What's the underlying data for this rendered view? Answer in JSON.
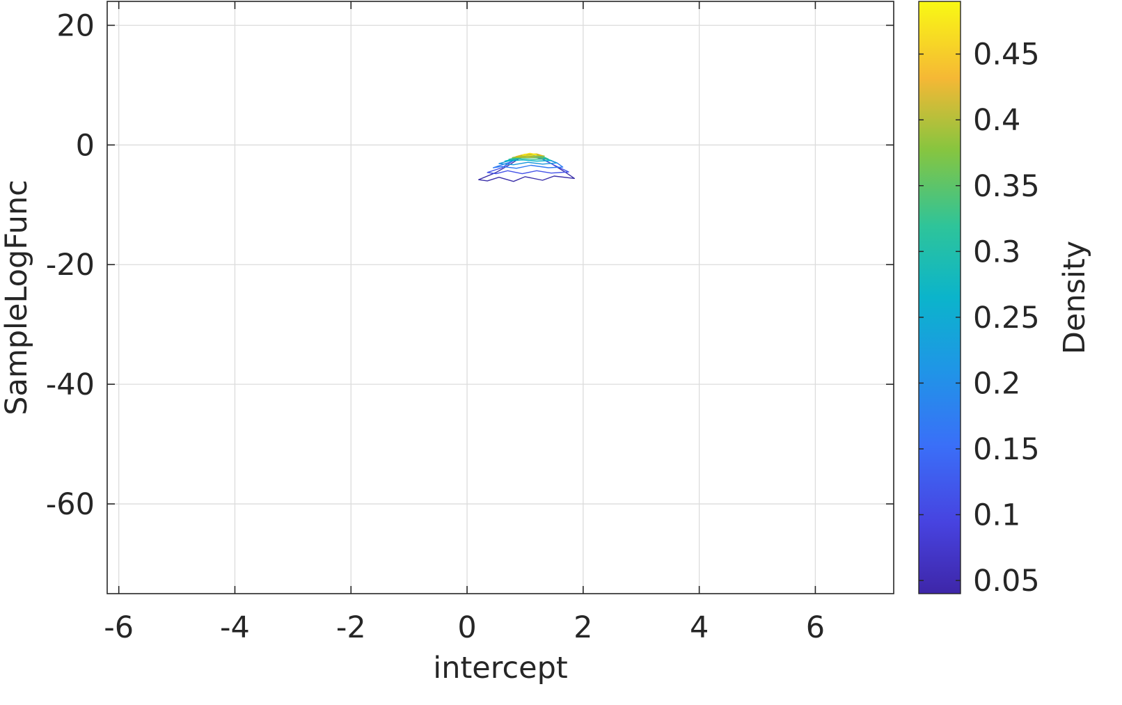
{
  "chart_data": {
    "type": "contour",
    "xlabel": "intercept",
    "ylabel": "SampleLogFunc",
    "xlim": [
      -6.2,
      7.35
    ],
    "ylim": [
      -75,
      24
    ],
    "xticks": [
      -6,
      -4,
      -2,
      0,
      2,
      4,
      6
    ],
    "yticks": [
      20,
      0,
      -20,
      -40,
      -60
    ],
    "grid": true,
    "colorbar": {
      "label": "Density",
      "range": [
        0.04,
        0.49
      ],
      "ticks": [
        0.05,
        0.1,
        0.15,
        0.2,
        0.25,
        0.3,
        0.35,
        0.4,
        0.45
      ],
      "colormap": "parula"
    },
    "density_peak": {
      "x": 1.05,
      "y": -1.8
    },
    "contours": [
      {
        "level": 0.05,
        "color": "#3a2ea8",
        "points": [
          [
            0.2,
            -5.8
          ],
          [
            0.5,
            -4.6
          ],
          [
            0.75,
            -3.2
          ],
          [
            1.0,
            -1.6
          ],
          [
            1.2,
            -1.9
          ],
          [
            1.45,
            -3.1
          ],
          [
            1.7,
            -4.6
          ],
          [
            1.85,
            -5.6
          ],
          [
            1.5,
            -5.2
          ],
          [
            1.3,
            -5.9
          ],
          [
            1.0,
            -5.3
          ],
          [
            0.8,
            -6.1
          ],
          [
            0.55,
            -5.4
          ],
          [
            0.35,
            -6.0
          ]
        ]
      },
      {
        "level": 0.1,
        "color": "#4453e8",
        "points": [
          [
            0.35,
            -4.6
          ],
          [
            0.6,
            -3.8
          ],
          [
            0.85,
            -2.3
          ],
          [
            1.05,
            -1.7
          ],
          [
            1.3,
            -2.4
          ],
          [
            1.55,
            -3.6
          ],
          [
            1.75,
            -4.5
          ],
          [
            1.45,
            -4.7
          ],
          [
            1.2,
            -4.3
          ],
          [
            0.95,
            -4.8
          ],
          [
            0.7,
            -4.3
          ],
          [
            0.5,
            -4.8
          ]
        ]
      },
      {
        "level": 0.15,
        "color": "#2e79f2",
        "points": [
          [
            0.45,
            -3.8
          ],
          [
            0.7,
            -3.0
          ],
          [
            0.9,
            -2.2
          ],
          [
            1.1,
            -1.7
          ],
          [
            1.35,
            -2.3
          ],
          [
            1.55,
            -3.0
          ],
          [
            1.65,
            -3.7
          ],
          [
            1.4,
            -3.8
          ],
          [
            1.1,
            -3.4
          ],
          [
            0.85,
            -3.9
          ],
          [
            0.6,
            -3.6
          ]
        ]
      },
      {
        "level": 0.2,
        "color": "#1896dc",
        "points": [
          [
            0.55,
            -3.1
          ],
          [
            0.78,
            -2.5
          ],
          [
            1.0,
            -1.9
          ],
          [
            1.25,
            -2.1
          ],
          [
            1.45,
            -2.6
          ],
          [
            1.55,
            -3.0
          ],
          [
            1.3,
            -3.2
          ],
          [
            1.05,
            -2.9
          ],
          [
            0.8,
            -3.3
          ]
        ]
      },
      {
        "level": 0.25,
        "color": "#00b2c8",
        "points": [
          [
            0.65,
            -2.7
          ],
          [
            0.85,
            -2.2
          ],
          [
            1.05,
            -1.9
          ],
          [
            1.3,
            -2.1
          ],
          [
            1.45,
            -2.6
          ],
          [
            1.2,
            -2.7
          ],
          [
            0.95,
            -2.5
          ]
        ]
      },
      {
        "level": 0.3,
        "color": "#2ebf92",
        "points": [
          [
            0.72,
            -2.4
          ],
          [
            0.9,
            -2.0
          ],
          [
            1.1,
            -1.75
          ],
          [
            1.32,
            -2.0
          ],
          [
            1.4,
            -2.35
          ],
          [
            1.15,
            -2.4
          ],
          [
            0.92,
            -2.3
          ]
        ]
      },
      {
        "level": 0.35,
        "color": "#8cc23a",
        "points": [
          [
            0.78,
            -2.1
          ],
          [
            0.95,
            -1.8
          ],
          [
            1.15,
            -1.6
          ],
          [
            1.33,
            -1.85
          ],
          [
            1.3,
            -2.15
          ],
          [
            1.05,
            -2.1
          ]
        ]
      },
      {
        "level": 0.4,
        "color": "#d9b81c",
        "points": [
          [
            0.84,
            -1.95
          ],
          [
            1.0,
            -1.55
          ],
          [
            1.2,
            -1.5
          ],
          [
            1.3,
            -1.8
          ],
          [
            1.08,
            -1.95
          ]
        ]
      },
      {
        "level": 0.45,
        "color": "#f9e41a",
        "points": [
          [
            0.95,
            -1.7
          ],
          [
            1.08,
            -1.4
          ],
          [
            1.2,
            -1.6
          ],
          [
            1.1,
            -1.75
          ]
        ]
      }
    ]
  }
}
